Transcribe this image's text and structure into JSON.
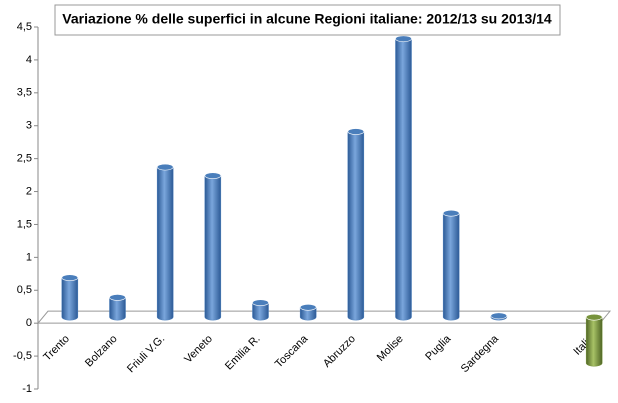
{
  "chart_data": {
    "type": "bar",
    "title": "Variazione % delle superfici in alcune Regioni italiane: 2012/13 su 2013/14",
    "categories": [
      "Trento",
      "Bolzano",
      "Friuli V.G.",
      "Veneto",
      "Emilia R.",
      "Toscana",
      "Abruzzo",
      "Molise",
      "Puglia",
      "Sardegna",
      null,
      "Italia"
    ],
    "values": [
      0.6,
      0.3,
      2.28,
      2.15,
      0.22,
      0.15,
      2.82,
      4.23,
      1.58,
      0.02,
      null,
      -0.7
    ],
    "colors": [
      "#4a7ebb",
      "#4a7ebb",
      "#4a7ebb",
      "#4a7ebb",
      "#4a7ebb",
      "#4a7ebb",
      "#4a7ebb",
      "#4a7ebb",
      "#4a7ebb",
      "#4a7ebb",
      "#4a7ebb",
      "#77933c"
    ],
    "ylim": [
      -1,
      4.5
    ],
    "yticks": [
      -1,
      {
        "value": -0.5,
        "label": "-0,5"
      },
      0,
      {
        "value": 0.5,
        "label": "0,5"
      },
      1,
      {
        "value": 1.5,
        "label": "1,5"
      },
      2,
      {
        "value": 2.5,
        "label": "2,5"
      },
      3,
      {
        "value": 3.5,
        "label": "3,5"
      },
      4,
      {
        "value": 4.5,
        "label": "4,5"
      }
    ],
    "grid": false
  }
}
